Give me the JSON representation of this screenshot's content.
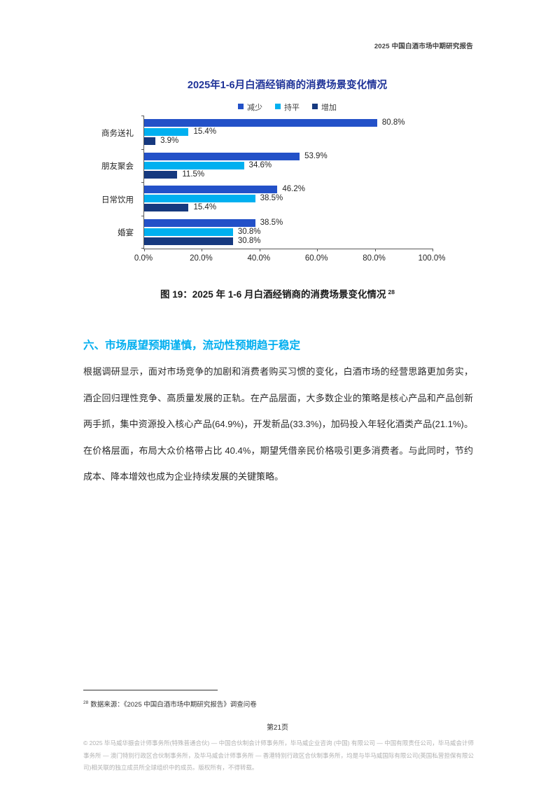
{
  "page": {
    "header": "2025 中国白酒市场中期研究报告",
    "page_number": "第21页"
  },
  "chart_data": {
    "type": "bar",
    "orientation": "horizontal",
    "title": "2025年1-6月白酒经销商的消费场景变化情况",
    "categories": [
      "商务送礼",
      "朋友聚会",
      "日常饮用",
      "婚宴"
    ],
    "series": [
      {
        "name": "减少",
        "color": "#2351C8",
        "values": [
          80.8,
          53.9,
          46.2,
          38.5
        ]
      },
      {
        "name": "持平",
        "color": "#00B0F0",
        "values": [
          15.4,
          34.6,
          38.5,
          30.8
        ]
      },
      {
        "name": "增加",
        "color": "#16397F",
        "values": [
          3.9,
          11.5,
          15.4,
          30.8
        ]
      }
    ],
    "x_ticks": [
      "0.0%",
      "20.0%",
      "40.0%",
      "60.0%",
      "80.0%",
      "100.0%"
    ],
    "xlim": [
      0,
      100
    ],
    "value_suffix": "%",
    "legend_position": "top",
    "grid": false
  },
  "figure": {
    "caption": "图 19：2025 年 1-6 月白酒经销商的消费场景变化情况",
    "caption_superscript": "28"
  },
  "section": {
    "heading": "六、市场展望预期谨慎，流动性预期趋于稳定",
    "body": "根据调研显示，面对市场竞争的加剧和消费者购买习惯的变化，白酒市场的经营思路更加务实，酒企回归理性竞争、高质量发展的正轨。在产品层面，大多数企业的策略是核心产品和产品创新两手抓，集中资源投入核心产品(64.9%)，开发新品(33.3%)，加码投入年轻化酒类产品(21.1%)。在价格层面，布局大众价格带占比 40.4%，期望凭借亲民价格吸引更多消费者。与此同时，节约成本、降本增效也成为企业持续发展的关键策略。"
  },
  "footnote": {
    "marker": "28",
    "text": "数据来源：《2025 中国白酒市场中期研究报告》调查问卷"
  },
  "footer": {
    "text": "© 2025  毕马威华振会计师事务所(特殊普通合伙) — 中国合伙制会计师事务所，毕马威企业咨询 (中国) 有限公司 — 中国有限责任公司，毕马威会计师事务所 — 澳门特别行政区合伙制事务所，及毕马威会计师事务所 — 香港特别行政区合伙制事务所，均是与毕马威国际有限公司(英国私营担保有限公司)相关联的独立成员所全球组织中的成员。版权所有，不得转载。"
  },
  "colors": {
    "chart_title": "#1F3398",
    "section_heading": "#00AEEF",
    "axis": "#595959",
    "footer_gray": "#B1B1B1"
  }
}
